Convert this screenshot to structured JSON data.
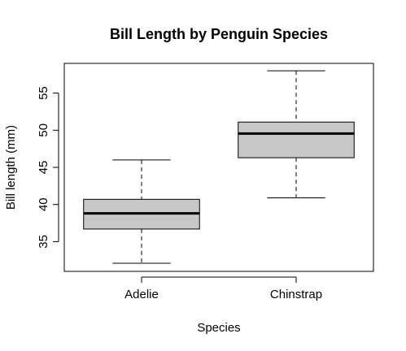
{
  "chart_data": {
    "type": "boxplot",
    "title": "Bill Length by Penguin Species",
    "xlabel": "Species",
    "ylabel": "Bill length (mm)",
    "categories": [
      "Adelie",
      "Chinstrap"
    ],
    "ylim": [
      31,
      59
    ],
    "yticks": [
      35,
      40,
      45,
      50,
      55
    ],
    "box_fill": "#c8c8c8",
    "boxes": [
      {
        "category": "Adelie",
        "whisker_low": 32.1,
        "q1": 36.7,
        "median": 38.8,
        "q3": 40.7,
        "whisker_high": 46.0
      },
      {
        "category": "Chinstrap",
        "whisker_low": 40.9,
        "q1": 46.3,
        "median": 49.55,
        "q3": 51.1,
        "whisker_high": 58.0
      }
    ],
    "grid": false,
    "legend": "none"
  }
}
